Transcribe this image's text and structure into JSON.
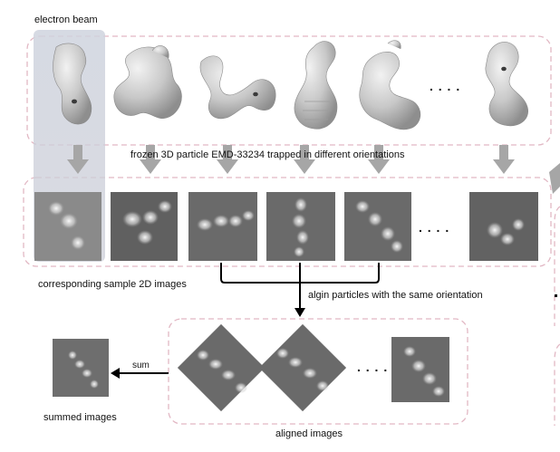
{
  "labels": {
    "electron_beam": "electron beam",
    "frozen_particles": "frozen 3D particle EMD-33234 trapped in different orientations",
    "sample_images": "corresponding sample 2D images",
    "align": "algin particles with the same orientation",
    "sum_arrow": "sum",
    "summed": "summed images",
    "aligned": "aligned images"
  },
  "ellipsis": ". . . .",
  "colors": {
    "dashed_border": "#e2b8c4",
    "beam_fill": "#cfd3de",
    "arrow_gray": "#a6a6a6",
    "particle_fill": "#d2d2d2",
    "micrograph_bg": "#6c6c6c"
  }
}
